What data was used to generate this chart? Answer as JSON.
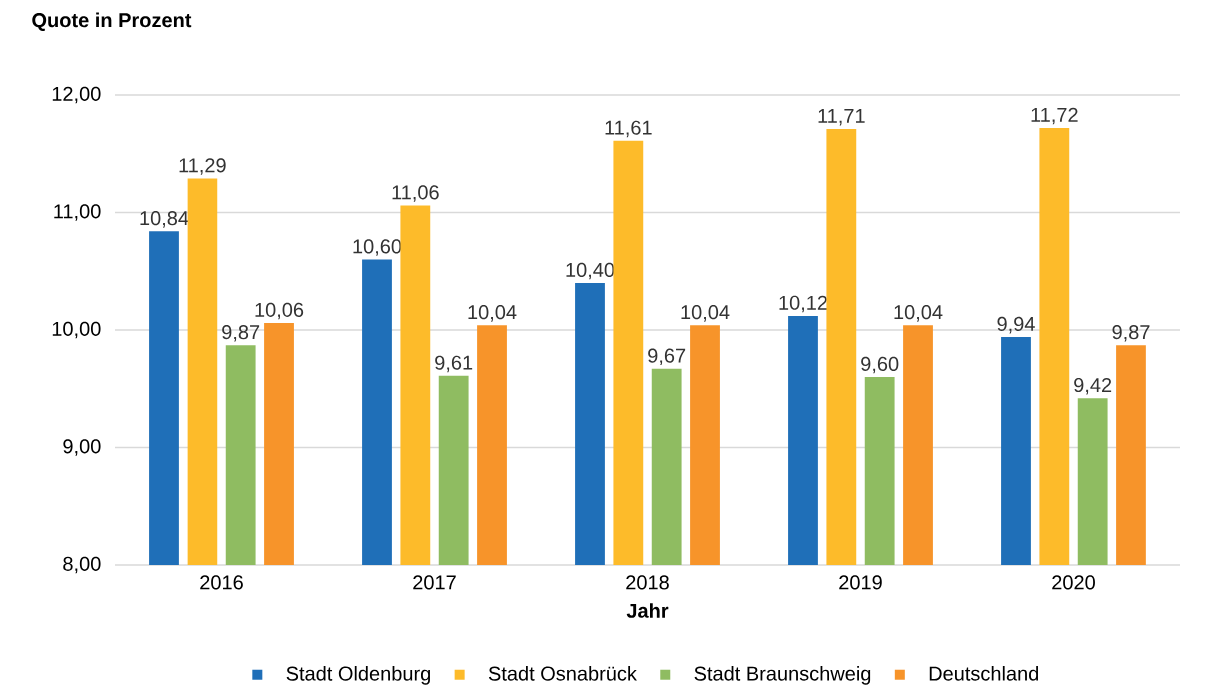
{
  "chart_data": {
    "type": "bar",
    "title": "Quote in Prozent",
    "xlabel": "Jahr",
    "categories": [
      "2016",
      "2017",
      "2018",
      "2019",
      "2020"
    ],
    "series": [
      {
        "name": "Stadt Oldenburg",
        "color": "#1f6fb8",
        "values": [
          10.84,
          10.6,
          10.4,
          10.12,
          9.94
        ],
        "value_labels": [
          "10,84",
          "10,60",
          "10,40",
          "10,12",
          "9,94"
        ]
      },
      {
        "name": "Stadt Osnabrück",
        "color": "#fdbb2a",
        "values": [
          11.29,
          11.06,
          11.61,
          11.71,
          11.72
        ],
        "value_labels": [
          "11,29",
          "11,06",
          "11,61",
          "11,71",
          "11,72"
        ]
      },
      {
        "name": "Stadt Braunschweig",
        "color": "#8fbc61",
        "values": [
          9.87,
          9.61,
          9.67,
          9.6,
          9.42
        ],
        "value_labels": [
          "9,87",
          "9,61",
          "9,67",
          "9,60",
          "9,42"
        ]
      },
      {
        "name": "Deutschland",
        "color": "#f7942a",
        "values": [
          10.06,
          10.04,
          10.04,
          10.04,
          9.87
        ],
        "value_labels": [
          "10,06",
          "10,04",
          "10,04",
          "10,04",
          "9,87"
        ]
      }
    ],
    "ylim": [
      8,
      12
    ],
    "yticks": [
      {
        "value": 8,
        "label": "8,00"
      },
      {
        "value": 9,
        "label": "9,00"
      },
      {
        "value": 10,
        "label": "10,00"
      },
      {
        "value": 11,
        "label": "11,00"
      },
      {
        "value": 12,
        "label": "12,00"
      }
    ],
    "grid": "y",
    "legend": "bottom"
  }
}
